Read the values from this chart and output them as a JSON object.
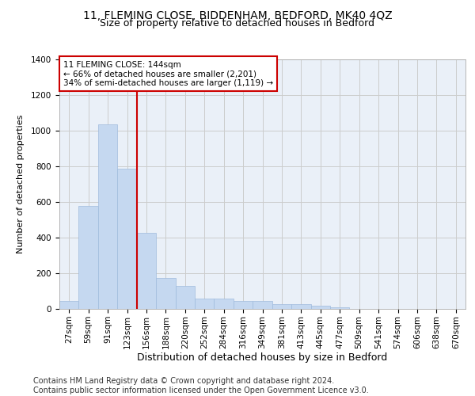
{
  "title1": "11, FLEMING CLOSE, BIDDENHAM, BEDFORD, MK40 4QZ",
  "title2": "Size of property relative to detached houses in Bedford",
  "xlabel": "Distribution of detached houses by size in Bedford",
  "ylabel": "Number of detached properties",
  "bin_labels": [
    "27sqm",
    "59sqm",
    "91sqm",
    "123sqm",
    "156sqm",
    "188sqm",
    "220sqm",
    "252sqm",
    "284sqm",
    "316sqm",
    "349sqm",
    "381sqm",
    "413sqm",
    "445sqm",
    "477sqm",
    "509sqm",
    "541sqm",
    "574sqm",
    "606sqm",
    "638sqm",
    "670sqm"
  ],
  "bar_values": [
    45,
    580,
    1035,
    785,
    425,
    175,
    130,
    60,
    60,
    45,
    45,
    28,
    28,
    18,
    10,
    0,
    0,
    0,
    0,
    0,
    0
  ],
  "bar_color": "#c5d8f0",
  "bar_edge_color": "#a0bbdd",
  "annotation_box_text": "11 FLEMING CLOSE: 144sqm\n← 66% of detached houses are smaller (2,201)\n34% of semi-detached houses are larger (1,119) →",
  "annotation_box_color": "#ffffff",
  "annotation_box_edge_color": "#cc0000",
  "vline_color": "#cc0000",
  "vline_bin_index": 3,
  "ylim": [
    0,
    1400
  ],
  "yticks": [
    0,
    200,
    400,
    600,
    800,
    1000,
    1200,
    1400
  ],
  "grid_color": "#cccccc",
  "background_color": "#eaf0f8",
  "footer_text": "Contains HM Land Registry data © Crown copyright and database right 2024.\nContains public sector information licensed under the Open Government Licence v3.0.",
  "title1_fontsize": 10,
  "title2_fontsize": 9,
  "xlabel_fontsize": 9,
  "ylabel_fontsize": 8,
  "tick_fontsize": 7.5,
  "annot_fontsize": 7.5,
  "footer_fontsize": 7
}
